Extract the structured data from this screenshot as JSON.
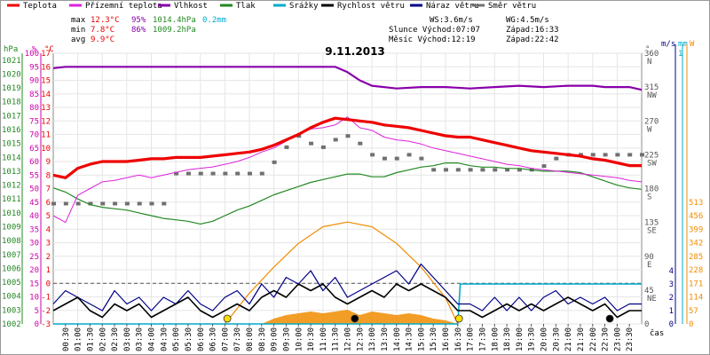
{
  "chart_data": {
    "type": "line",
    "title": "9.11.2013",
    "xlabel": "čas",
    "x_ticks": [
      "00:30",
      "01:00",
      "01:30",
      "02:00",
      "02:30",
      "03:00",
      "03:30",
      "04:00",
      "04:30",
      "05:00",
      "05:30",
      "06:00",
      "06:30",
      "07:00",
      "07:30",
      "08:00",
      "08:30",
      "09:00",
      "09:30",
      "10:00",
      "10:30",
      "11:00",
      "11:30",
      "12:00",
      "12:30",
      "13:00",
      "13:30",
      "14:00",
      "14:30",
      "15:00",
      "15:30",
      "16:00",
      "16:30",
      "17:00",
      "17:30",
      "18:00",
      "18:30",
      "19:00",
      "19:30",
      "20:00",
      "20:30",
      "21:00",
      "21:30",
      "22:00",
      "22:30",
      "23:00",
      "23:30"
    ],
    "axes": {
      "hpa": {
        "unit": "hPa",
        "ticks": [
          "1021",
          "1020",
          "1019",
          "1018",
          "1017",
          "1016",
          "1015",
          "1014",
          "1013",
          "1012",
          "1011",
          "1010",
          "1009",
          "1008",
          "1007",
          "1006",
          "1005",
          "1004",
          "1003",
          "1002"
        ]
      },
      "pct": {
        "unit": "%",
        "ticks": [
          "100",
          "95",
          "90",
          "85",
          "80",
          "75",
          "70",
          "65",
          "60",
          "55",
          "50",
          "45",
          "40",
          "35",
          "30",
          "25",
          "20",
          "15",
          "10",
          "5",
          "0"
        ]
      },
      "temp": {
        "unit": "°C",
        "ticks": [
          "17",
          "16",
          "15",
          "14",
          "13",
          "12",
          "11",
          "10",
          "9",
          "8",
          "7",
          "6",
          "5",
          "4",
          "3",
          "2",
          "1",
          "0",
          "-1",
          "-2",
          "-3"
        ]
      },
      "dir": {
        "unit": "°",
        "ticks": [
          "360",
          "315",
          "270",
          "225",
          "180",
          "135",
          "90",
          "45",
          "0"
        ],
        "names": [
          "N",
          "NW",
          "W",
          "SW",
          "S",
          "SE",
          "E",
          "NE"
        ]
      },
      "wind": {
        "unit": "m/s",
        "ticks": [
          "4",
          "3",
          "2",
          "1",
          "0"
        ]
      },
      "rain": {
        "unit": "mm",
        "top": "1"
      },
      "solar": {
        "unit": "W",
        "ticks": [
          "513",
          "456",
          "399",
          "342",
          "285",
          "228",
          "171",
          "114",
          "57",
          "0"
        ]
      }
    },
    "legend": [
      {
        "name": "Teplota",
        "color": "#ee0000"
      },
      {
        "name": "Přízemní teplota",
        "color": "#dd22dd"
      },
      {
        "name": "Vlhkost",
        "color": "#8800aa"
      },
      {
        "name": "Tlak",
        "color": "#228822"
      },
      {
        "name": "Srážky",
        "color": "#00aacc"
      },
      {
        "name": "Rychlost větru",
        "color": "#000000"
      },
      {
        "name": "Náraz větru",
        "color": "#000088"
      },
      {
        "name": "Směr větru",
        "color": "#707070"
      }
    ],
    "stats": {
      "max": {
        "label": "max",
        "temp": "12.3°C",
        "hum": "95%",
        "press": "1014.4hPa",
        "rain": "0.2mm"
      },
      "min": {
        "label": "min",
        "temp": "7.8°C",
        "hum": "86%",
        "press": "1009.2hPa"
      },
      "avg": {
        "label": "avg",
        "temp": "9.9°C"
      }
    },
    "info": {
      "ws": "WS:3.6m/s",
      "wg": "WG:4.5m/s",
      "sun": "Slunce Východ:07:07",
      "sunset": "Západ:16:33",
      "moon": "Měsíc  Východ:12:19",
      "moonset": "Západ:22:42"
    },
    "series": [
      {
        "name": "Teplota",
        "unit": "°C",
        "x": [
          0.0,
          0.5,
          1.0,
          1.5,
          2.0,
          2.5,
          3.0,
          3.5,
          4.0,
          4.5,
          5.0,
          5.5,
          6.0,
          6.5,
          7.0,
          7.5,
          8.0,
          8.5,
          9.0,
          9.5,
          10.0,
          10.5,
          11.0,
          11.5,
          12.0,
          12.5,
          13.0,
          13.5,
          14.0,
          14.5,
          15.0,
          15.5,
          16.0,
          16.5,
          17.0,
          17.5,
          18.0,
          18.5,
          19.0,
          19.5,
          20.0,
          20.5,
          21.0,
          21.5,
          22.0,
          22.5,
          23.0,
          23.5,
          24.0
        ],
        "y": [
          8.0,
          7.8,
          8.5,
          8.8,
          9.0,
          9.0,
          9.0,
          9.1,
          9.2,
          9.2,
          9.3,
          9.3,
          9.3,
          9.4,
          9.5,
          9.6,
          9.7,
          9.9,
          10.2,
          10.6,
          11.0,
          11.5,
          11.9,
          12.2,
          12.1,
          12.0,
          11.9,
          11.7,
          11.6,
          11.5,
          11.3,
          11.1,
          10.9,
          10.8,
          10.8,
          10.6,
          10.4,
          10.2,
          10.0,
          9.8,
          9.7,
          9.6,
          9.5,
          9.4,
          9.2,
          9.1,
          8.9,
          8.7,
          8.7
        ]
      },
      {
        "name": "Přízemní teplota",
        "unit": "°C",
        "x": [
          0.0,
          0.5,
          1.0,
          1.5,
          2.0,
          2.5,
          3.0,
          3.5,
          4.0,
          4.5,
          5.0,
          5.5,
          6.0,
          6.5,
          7.0,
          7.5,
          8.0,
          8.5,
          9.0,
          9.5,
          10.0,
          10.5,
          11.0,
          11.5,
          12.0,
          12.5,
          13.0,
          13.5,
          14.0,
          14.5,
          15.0,
          15.5,
          16.0,
          16.5,
          17.0,
          17.5,
          18.0,
          18.5,
          19.0,
          19.5,
          20.0,
          20.5,
          21.0,
          21.5,
          22.0,
          22.5,
          23.0,
          23.5,
          24.0
        ],
        "y": [
          5.0,
          4.5,
          6.5,
          7.0,
          7.5,
          7.6,
          7.8,
          8.0,
          7.8,
          8.0,
          8.2,
          8.4,
          8.5,
          8.6,
          8.8,
          9.0,
          9.3,
          9.7,
          10.0,
          10.5,
          11.0,
          11.4,
          11.5,
          11.7,
          12.3,
          11.5,
          11.3,
          10.8,
          10.6,
          10.5,
          10.3,
          10.0,
          9.8,
          9.6,
          9.4,
          9.2,
          9.0,
          8.8,
          8.7,
          8.5,
          8.4,
          8.3,
          8.2,
          8.1,
          8.0,
          7.9,
          7.8,
          7.6,
          7.5
        ]
      },
      {
        "name": "Vlhkost",
        "unit": "%",
        "x": [
          0.0,
          0.5,
          1.0,
          2.0,
          3.0,
          4.0,
          5.0,
          6.0,
          7.0,
          8.0,
          9.0,
          10.0,
          11.0,
          11.5,
          12.0,
          12.5,
          13.0,
          14.0,
          15.0,
          16.0,
          17.0,
          18.0,
          19.0,
          20.0,
          21.0,
          22.0,
          22.5,
          23.0,
          23.5,
          24.0
        ],
        "y": [
          94.5,
          95.0,
          95.0,
          95.0,
          95.0,
          95.0,
          95.0,
          95.0,
          95.0,
          95.0,
          95.0,
          95.0,
          95.0,
          95.0,
          93.0,
          90.0,
          88.0,
          87.0,
          87.5,
          87.5,
          87.0,
          87.5,
          88.0,
          87.5,
          88.0,
          88.0,
          87.5,
          87.5,
          87.5,
          86.5
        ]
      },
      {
        "name": "Tlak",
        "unit": "hPa",
        "x": [
          0.0,
          0.5,
          1.0,
          1.5,
          2.0,
          2.5,
          3.0,
          3.5,
          4.0,
          4.5,
          5.0,
          5.5,
          6.0,
          6.5,
          7.0,
          7.5,
          8.0,
          8.5,
          9.0,
          9.5,
          10.0,
          10.5,
          11.0,
          11.5,
          12.0,
          12.5,
          13.0,
          13.5,
          14.0,
          14.5,
          15.0,
          15.5,
          16.0,
          16.5,
          17.0,
          17.5,
          18.0,
          18.5,
          19.0,
          19.5,
          20.0,
          20.5,
          21.0,
          21.5,
          22.0,
          22.5,
          23.0,
          23.5,
          24.0
        ],
        "y": [
          1011.8,
          1011.5,
          1011.0,
          1010.6,
          1010.4,
          1010.3,
          1010.2,
          1010.0,
          1009.8,
          1009.6,
          1009.5,
          1009.4,
          1009.2,
          1009.4,
          1009.8,
          1010.2,
          1010.5,
          1010.9,
          1011.3,
          1011.6,
          1011.9,
          1012.2,
          1012.4,
          1012.6,
          1012.8,
          1012.8,
          1012.6,
          1012.6,
          1012.9,
          1013.1,
          1013.3,
          1013.4,
          1013.6,
          1013.6,
          1013.4,
          1013.3,
          1013.3,
          1013.2,
          1013.2,
          1013.1,
          1013.0,
          1013.0,
          1013.0,
          1012.9,
          1012.6,
          1012.3,
          1012.0,
          1011.8,
          1011.7
        ]
      },
      {
        "name": "Srážky",
        "unit": "mm",
        "x": [
          0.0,
          16.5,
          16.6,
          24.0
        ],
        "y": [
          0.0,
          0.0,
          0.2,
          0.2
        ]
      },
      {
        "name": "Rychlost větru",
        "unit": "m/s",
        "x": [
          0.0,
          0.5,
          1.0,
          1.5,
          2.0,
          2.5,
          3.0,
          3.5,
          4.0,
          4.5,
          5.0,
          5.5,
          6.0,
          6.5,
          7.0,
          7.5,
          8.0,
          8.5,
          9.0,
          9.5,
          10.0,
          10.5,
          11.0,
          11.5,
          12.0,
          12.5,
          13.0,
          13.5,
          14.0,
          14.5,
          15.0,
          15.5,
          16.0,
          16.5,
          17.0,
          17.5,
          18.0,
          18.5,
          19.0,
          19.5,
          20.0,
          20.5,
          21.0,
          21.5,
          22.0,
          22.5,
          23.0,
          23.5,
          24.0
        ],
        "y": [
          1.0,
          1.5,
          2.0,
          1.0,
          0.5,
          1.5,
          1.0,
          1.5,
          0.5,
          1.0,
          1.5,
          2.0,
          1.0,
          0.5,
          1.0,
          1.5,
          1.0,
          2.0,
          2.5,
          2.0,
          3.0,
          2.5,
          3.0,
          2.0,
          1.5,
          2.0,
          2.5,
          2.0,
          3.0,
          2.5,
          3.0,
          2.5,
          2.0,
          1.0,
          1.0,
          0.5,
          1.0,
          1.5,
          1.0,
          1.5,
          1.0,
          1.5,
          2.0,
          1.5,
          1.0,
          1.5,
          0.5,
          1.0,
          1.0
        ]
      },
      {
        "name": "Náraz větru",
        "unit": "m/s",
        "x": [
          0.0,
          0.5,
          1.0,
          1.5,
          2.0,
          2.5,
          3.0,
          3.5,
          4.0,
          4.5,
          5.0,
          5.5,
          6.0,
          6.5,
          7.0,
          7.5,
          8.0,
          8.5,
          9.0,
          9.5,
          10.0,
          10.5,
          11.0,
          11.5,
          12.0,
          12.5,
          13.0,
          13.5,
          14.0,
          14.5,
          15.0,
          15.5,
          16.0,
          16.5,
          17.0,
          17.5,
          18.0,
          18.5,
          19.0,
          19.5,
          20.0,
          20.5,
          21.0,
          21.5,
          22.0,
          22.5,
          23.0,
          23.5,
          24.0
        ],
        "y": [
          1.5,
          2.5,
          2.0,
          1.5,
          1.0,
          2.5,
          1.5,
          2.0,
          1.0,
          2.0,
          1.5,
          2.5,
          1.5,
          1.0,
          2.0,
          2.5,
          1.5,
          3.0,
          2.0,
          3.5,
          3.0,
          4.0,
          2.5,
          3.5,
          2.0,
          2.5,
          3.0,
          3.5,
          4.0,
          3.0,
          4.5,
          3.5,
          2.5,
          1.5,
          1.5,
          1.0,
          2.0,
          1.0,
          2.0,
          1.0,
          2.0,
          2.5,
          1.5,
          2.0,
          1.5,
          2.0,
          1.0,
          1.5,
          1.5
        ]
      },
      {
        "name": "Směr větru",
        "unit": "°",
        "x": [
          0.0,
          0.5,
          1.0,
          1.5,
          2.0,
          2.5,
          3.0,
          3.5,
          4.0,
          4.5,
          5.0,
          5.5,
          6.0,
          6.5,
          7.0,
          7.5,
          8.0,
          8.5,
          9.0,
          9.5,
          10.0,
          10.5,
          11.0,
          11.5,
          12.0,
          12.5,
          13.0,
          13.5,
          14.0,
          14.5,
          15.0,
          15.5,
          16.0,
          16.5,
          17.0,
          17.5,
          18.0,
          18.5,
          19.0,
          19.5,
          20.0,
          20.5,
          21.0,
          21.5,
          22.0,
          22.5,
          23.0,
          23.5,
          24.0
        ],
        "y": [
          160,
          160,
          160,
          160,
          160,
          160,
          160,
          160,
          160,
          160,
          200,
          200,
          200,
          200,
          200,
          200,
          200,
          200,
          215,
          235,
          250,
          240,
          235,
          245,
          250,
          240,
          225,
          220,
          220,
          225,
          220,
          205,
          205,
          205,
          205,
          205,
          205,
          205,
          205,
          205,
          210,
          220,
          225,
          225,
          225,
          225,
          225,
          225,
          225
        ]
      },
      {
        "name": "Sluneční záření",
        "unit": "W",
        "x": [
          7.0,
          8.0,
          9.0,
          10.0,
          11.0,
          12.0,
          13.0,
          14.0,
          15.0,
          16.0,
          16.5
        ],
        "y": [
          0,
          130,
          240,
          340,
          410,
          430,
          410,
          340,
          240,
          110,
          0
        ]
      }
    ],
    "markers": [
      {
        "label": "sunrise",
        "hour": 7.1,
        "color": "#ffdd00"
      },
      {
        "label": "moonrise",
        "hour": 12.3,
        "color": "#000000"
      },
      {
        "label": "sunset",
        "hour": 16.55,
        "color": "#ffdd00"
      },
      {
        "label": "moonset",
        "hour": 22.7,
        "color": "#000000"
      }
    ]
  }
}
